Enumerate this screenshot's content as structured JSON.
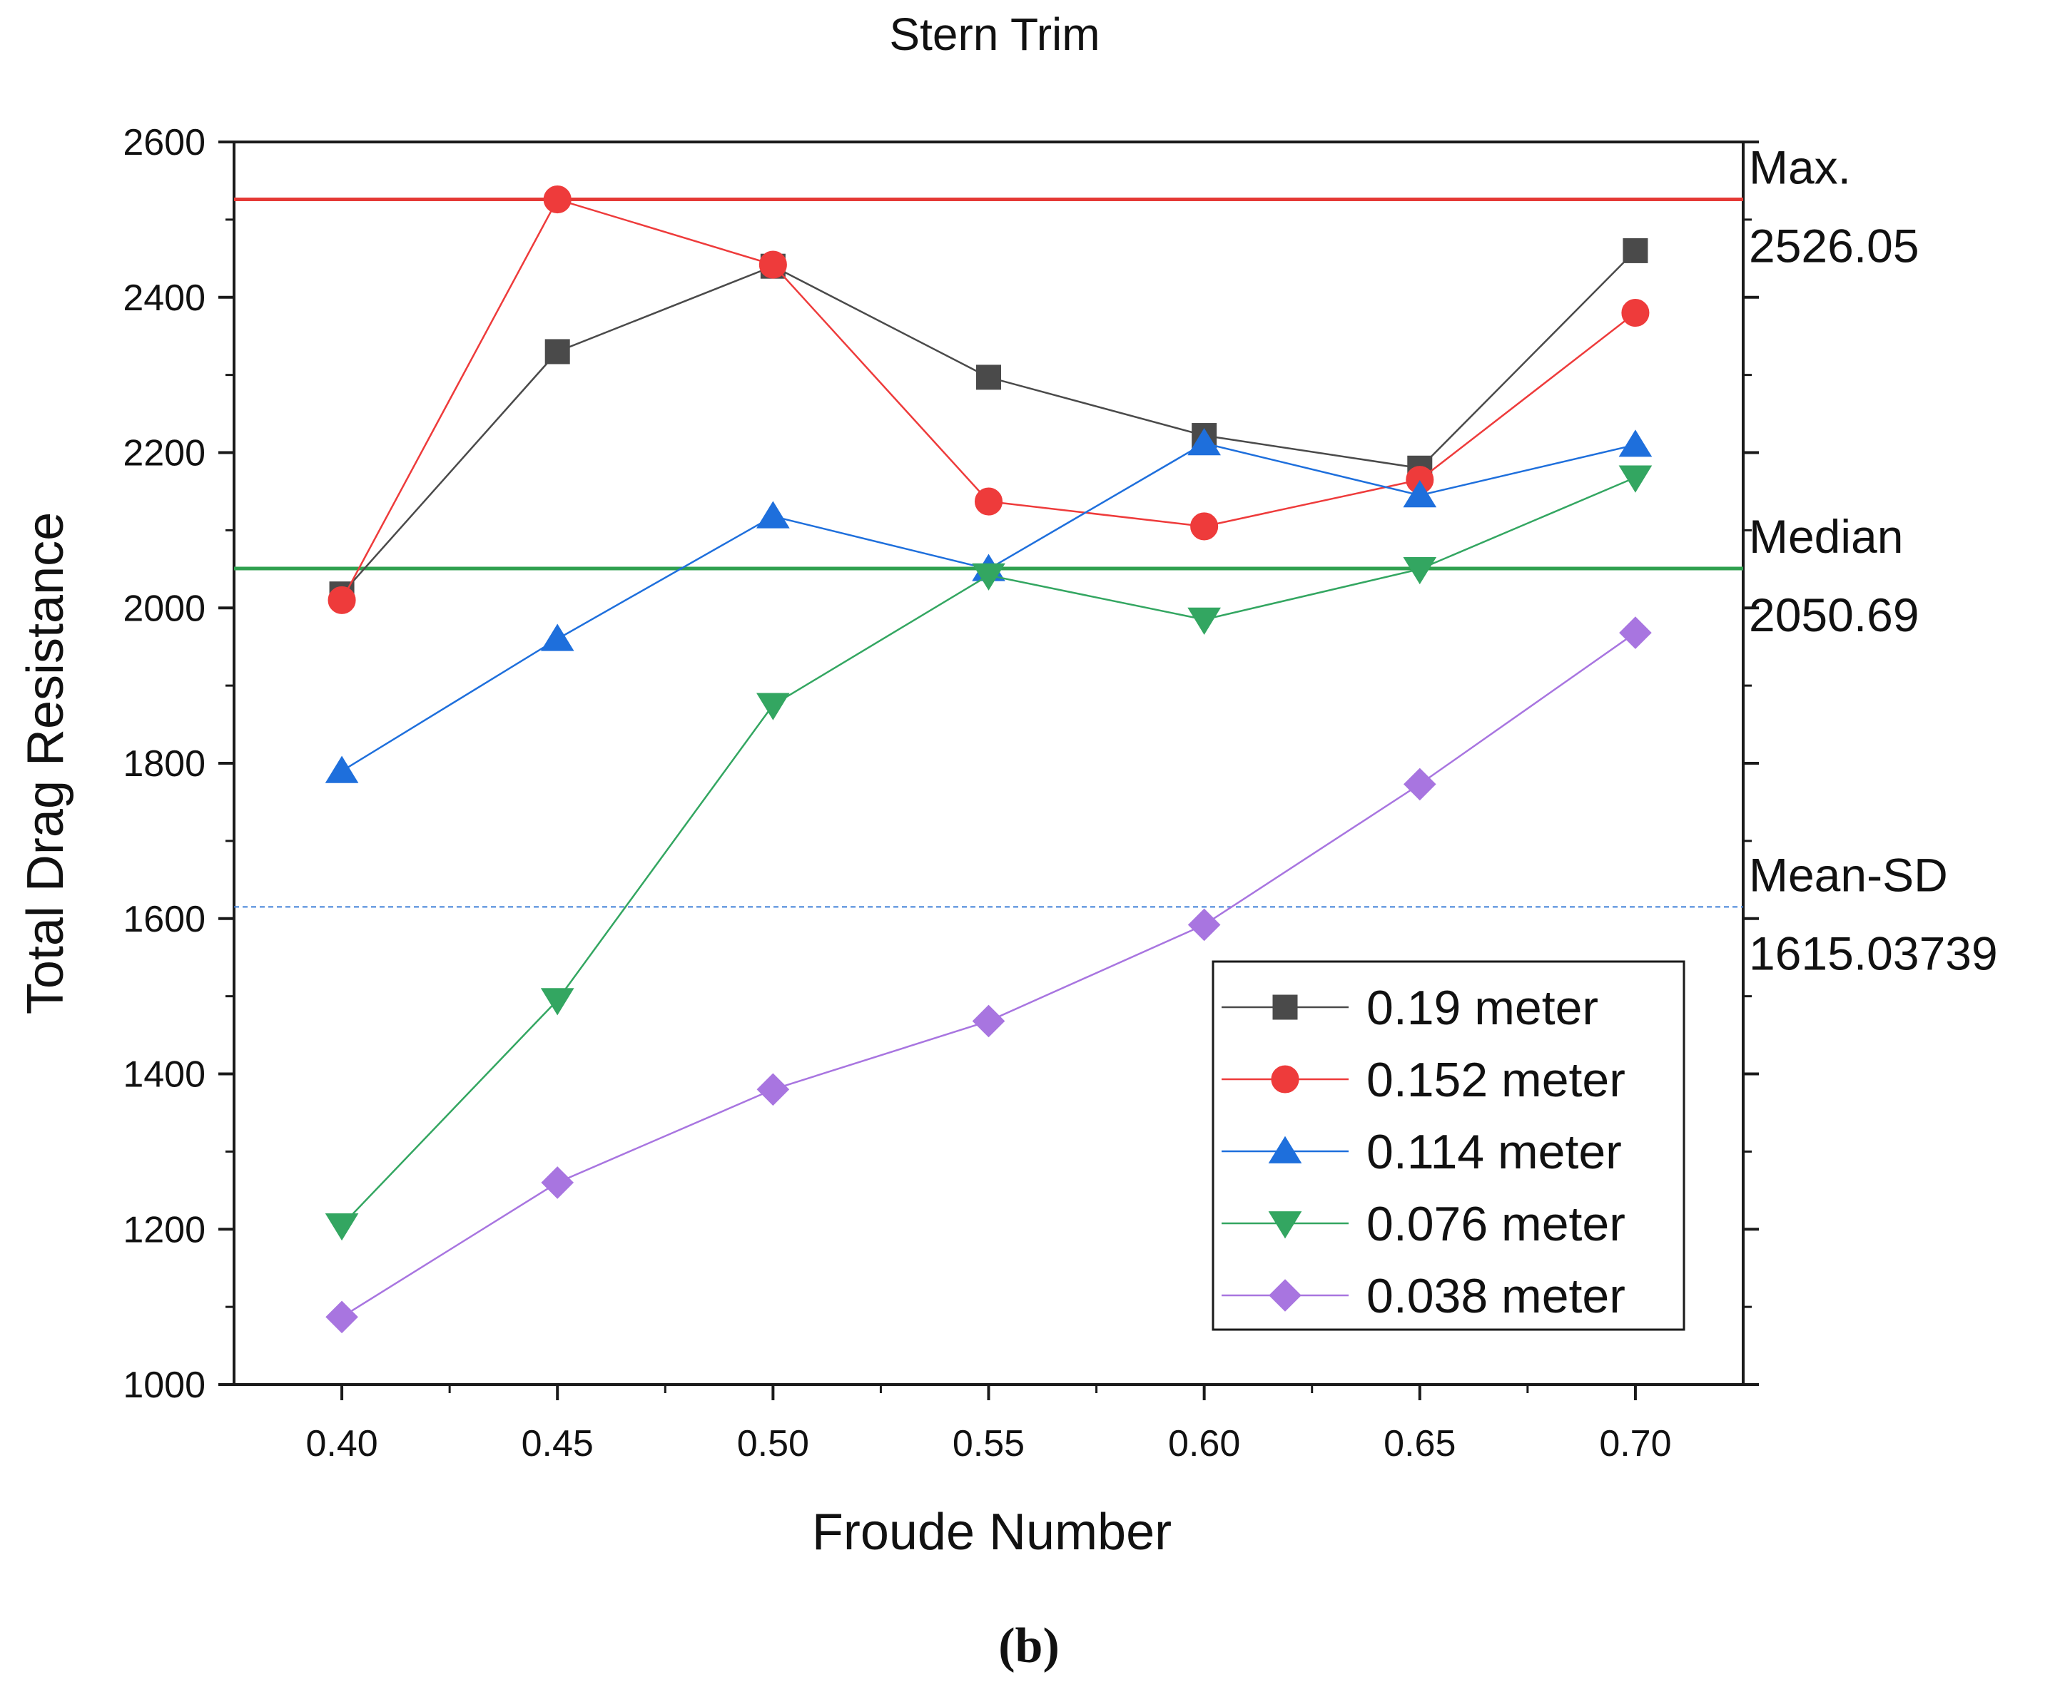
{
  "chart_data": {
    "type": "line",
    "title": "Stern Trim",
    "xlabel": "Froude Number",
    "ylabel": "Total Drag Resistance",
    "caption": "(b)",
    "x": [
      0.4,
      0.45,
      0.5,
      0.55,
      0.6,
      0.65,
      0.7
    ],
    "x_tick_labels": [
      "0.40",
      "0.45",
      "0.50",
      "0.55",
      "0.60",
      "0.65",
      "0.70"
    ],
    "xlim": [
      0.375,
      0.725
    ],
    "ylim": [
      1000,
      2600
    ],
    "y_ticks": [
      1000,
      1200,
      1400,
      1600,
      1800,
      2000,
      2200,
      2400,
      2600
    ],
    "y_tick_labels": [
      "1000",
      "1200",
      "1400",
      "1600",
      "1800",
      "2000",
      "2200",
      "2400",
      "2600"
    ],
    "grid": false,
    "legend_position": "bottom-right",
    "series": [
      {
        "name": "0.19 meter",
        "marker": "square",
        "color": "#4a4a4a",
        "values": [
          2018,
          2330,
          2440,
          2297,
          2222,
          2180,
          2460
        ]
      },
      {
        "name": "0.152 meter",
        "marker": "circle",
        "color": "#ee3b3b",
        "values": [
          2010,
          2526,
          2442,
          2137,
          2105,
          2165,
          2380
        ]
      },
      {
        "name": "0.114 meter",
        "marker": "triangle-up",
        "color": "#1e6fdc",
        "values": [
          1790,
          1960,
          2118,
          2050,
          2212,
          2145,
          2210
        ]
      },
      {
        "name": "0.076 meter",
        "marker": "triangle-down",
        "color": "#33a661",
        "values": [
          1205,
          1495,
          1875,
          2042,
          1985,
          2050,
          2168
        ]
      },
      {
        "name": "0.038 meter",
        "marker": "diamond",
        "color": "#a875e0",
        "values": [
          1087,
          1260,
          1380,
          1468,
          1592,
          1773,
          1968
        ]
      }
    ],
    "reference_lines": [
      {
        "label": "Max.",
        "value_text": "2526.05",
        "value": 2526.05,
        "color": "#e53935",
        "style": "solid"
      },
      {
        "label": "Median",
        "value_text": "2050.69",
        "value": 2050.69,
        "color": "#2fa04f",
        "style": "solid"
      },
      {
        "label": "Mean-SD",
        "value_text": "1615.03739",
        "value": 1615.03739,
        "color": "#3f7fd6",
        "style": "dashed"
      }
    ]
  }
}
